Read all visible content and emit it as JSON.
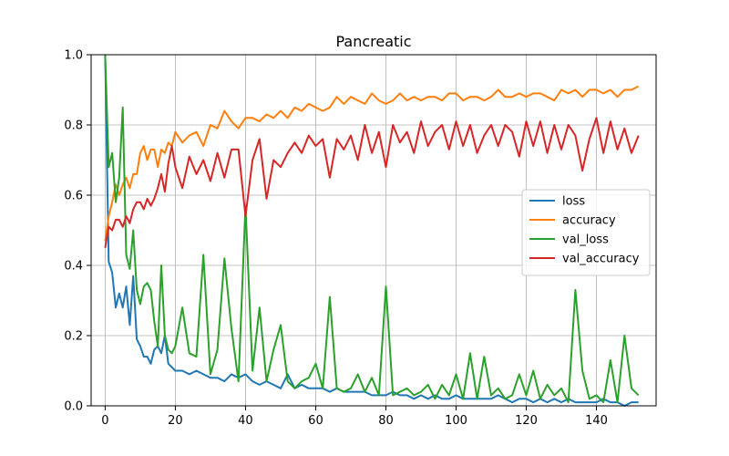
{
  "chart_data": {
    "type": "line",
    "title": "Pancreatic",
    "xlabel": "",
    "ylabel": "",
    "xlim": [
      -4,
      157
    ],
    "ylim": [
      0,
      1.0
    ],
    "xticks": [
      0,
      20,
      40,
      60,
      80,
      100,
      120,
      140
    ],
    "yticks": [
      0.0,
      0.2,
      0.4,
      0.6,
      0.8,
      1.0
    ],
    "grid": true,
    "legend_position": "center-right",
    "series": [
      {
        "name": "loss",
        "color": "#1f77b4",
        "x": [
          0,
          1,
          2,
          3,
          4,
          5,
          6,
          7,
          8,
          9,
          10,
          11,
          12,
          13,
          14,
          15,
          16,
          17,
          18,
          19,
          20,
          22,
          24,
          26,
          28,
          30,
          32,
          34,
          36,
          38,
          40,
          42,
          44,
          46,
          48,
          50,
          52,
          54,
          56,
          58,
          60,
          62,
          64,
          66,
          68,
          70,
          72,
          74,
          76,
          78,
          80,
          82,
          84,
          86,
          88,
          90,
          92,
          94,
          96,
          98,
          100,
          102,
          104,
          106,
          108,
          110,
          112,
          114,
          116,
          118,
          120,
          122,
          124,
          126,
          128,
          130,
          132,
          134,
          136,
          138,
          140,
          142,
          144,
          146,
          148,
          150,
          152
        ],
        "y": [
          1.0,
          0.41,
          0.38,
          0.28,
          0.32,
          0.28,
          0.34,
          0.23,
          0.37,
          0.19,
          0.17,
          0.14,
          0.14,
          0.12,
          0.16,
          0.17,
          0.15,
          0.2,
          0.12,
          0.11,
          0.1,
          0.1,
          0.09,
          0.1,
          0.09,
          0.08,
          0.08,
          0.07,
          0.09,
          0.08,
          0.09,
          0.07,
          0.06,
          0.07,
          0.06,
          0.05,
          0.09,
          0.05,
          0.06,
          0.05,
          0.05,
          0.05,
          0.04,
          0.05,
          0.04,
          0.04,
          0.04,
          0.04,
          0.03,
          0.03,
          0.03,
          0.04,
          0.03,
          0.03,
          0.02,
          0.03,
          0.02,
          0.03,
          0.02,
          0.02,
          0.03,
          0.02,
          0.02,
          0.02,
          0.02,
          0.02,
          0.03,
          0.02,
          0.01,
          0.02,
          0.02,
          0.01,
          0.02,
          0.01,
          0.02,
          0.01,
          0.02,
          0.01,
          0.01,
          0.01,
          0.01,
          0.02,
          0.01,
          0.01,
          0.0,
          0.01,
          0.01
        ]
      },
      {
        "name": "accuracy",
        "color": "#ff7f0e",
        "x": [
          0,
          1,
          2,
          3,
          4,
          5,
          6,
          7,
          8,
          9,
          10,
          11,
          12,
          13,
          14,
          15,
          16,
          17,
          18,
          19,
          20,
          22,
          24,
          26,
          28,
          30,
          32,
          34,
          36,
          38,
          40,
          42,
          44,
          46,
          48,
          50,
          52,
          54,
          56,
          58,
          60,
          62,
          64,
          66,
          68,
          70,
          72,
          74,
          76,
          78,
          80,
          82,
          84,
          86,
          88,
          90,
          92,
          94,
          96,
          98,
          100,
          102,
          104,
          106,
          108,
          110,
          112,
          114,
          116,
          118,
          120,
          122,
          124,
          126,
          128,
          130,
          132,
          134,
          136,
          138,
          140,
          142,
          144,
          146,
          148,
          150,
          152
        ],
        "y": [
          0.47,
          0.54,
          0.58,
          0.63,
          0.6,
          0.63,
          0.65,
          0.62,
          0.66,
          0.66,
          0.72,
          0.74,
          0.7,
          0.73,
          0.73,
          0.68,
          0.73,
          0.72,
          0.75,
          0.74,
          0.78,
          0.75,
          0.77,
          0.78,
          0.74,
          0.8,
          0.79,
          0.84,
          0.81,
          0.79,
          0.82,
          0.82,
          0.81,
          0.83,
          0.82,
          0.84,
          0.82,
          0.85,
          0.84,
          0.86,
          0.85,
          0.84,
          0.85,
          0.88,
          0.86,
          0.88,
          0.87,
          0.86,
          0.89,
          0.87,
          0.86,
          0.87,
          0.89,
          0.87,
          0.88,
          0.87,
          0.88,
          0.88,
          0.87,
          0.89,
          0.89,
          0.87,
          0.88,
          0.88,
          0.87,
          0.88,
          0.9,
          0.88,
          0.88,
          0.89,
          0.88,
          0.89,
          0.89,
          0.88,
          0.87,
          0.9,
          0.89,
          0.9,
          0.88,
          0.9,
          0.9,
          0.89,
          0.9,
          0.88,
          0.9,
          0.9,
          0.91
        ]
      },
      {
        "name": "val_loss",
        "color": "#2ca02c",
        "x": [
          0,
          1,
          2,
          3,
          4,
          5,
          6,
          7,
          8,
          9,
          10,
          11,
          12,
          13,
          14,
          15,
          16,
          17,
          18,
          19,
          20,
          22,
          24,
          26,
          28,
          30,
          32,
          34,
          36,
          38,
          40,
          42,
          44,
          46,
          48,
          50,
          52,
          54,
          56,
          58,
          60,
          62,
          64,
          66,
          68,
          70,
          72,
          74,
          76,
          78,
          80,
          82,
          84,
          86,
          88,
          90,
          92,
          94,
          96,
          98,
          100,
          102,
          104,
          106,
          108,
          110,
          112,
          114,
          116,
          118,
          120,
          122,
          124,
          126,
          128,
          130,
          132,
          134,
          136,
          138,
          140,
          142,
          144,
          146,
          148,
          150,
          152
        ],
        "y": [
          1.0,
          0.68,
          0.72,
          0.58,
          0.65,
          0.85,
          0.43,
          0.39,
          0.5,
          0.33,
          0.29,
          0.34,
          0.35,
          0.33,
          0.24,
          0.17,
          0.4,
          0.2,
          0.16,
          0.15,
          0.17,
          0.28,
          0.15,
          0.14,
          0.43,
          0.09,
          0.16,
          0.42,
          0.22,
          0.07,
          0.57,
          0.1,
          0.28,
          0.07,
          0.16,
          0.23,
          0.07,
          0.05,
          0.07,
          0.08,
          0.12,
          0.05,
          0.31,
          0.05,
          0.04,
          0.05,
          0.09,
          0.04,
          0.08,
          0.03,
          0.34,
          0.03,
          0.04,
          0.05,
          0.03,
          0.04,
          0.06,
          0.02,
          0.06,
          0.03,
          0.09,
          0.02,
          0.15,
          0.02,
          0.14,
          0.03,
          0.05,
          0.02,
          0.03,
          0.09,
          0.03,
          0.1,
          0.02,
          0.06,
          0.03,
          0.05,
          0.01,
          0.33,
          0.1,
          0.02,
          0.03,
          0.01,
          0.13,
          0.01,
          0.2,
          0.05,
          0.03
        ]
      },
      {
        "name": "val_accuracy",
        "color": "#d62728",
        "x": [
          0,
          1,
          2,
          3,
          4,
          5,
          6,
          7,
          8,
          9,
          10,
          11,
          12,
          13,
          14,
          15,
          16,
          17,
          18,
          19,
          20,
          22,
          24,
          26,
          28,
          30,
          32,
          34,
          36,
          38,
          40,
          42,
          44,
          46,
          48,
          50,
          52,
          54,
          56,
          58,
          60,
          62,
          64,
          66,
          68,
          70,
          72,
          74,
          76,
          78,
          80,
          82,
          84,
          86,
          88,
          90,
          92,
          94,
          96,
          98,
          100,
          102,
          104,
          106,
          108,
          110,
          112,
          114,
          116,
          118,
          120,
          122,
          124,
          126,
          128,
          130,
          132,
          134,
          136,
          138,
          140,
          142,
          144,
          146,
          148,
          150,
          152
        ],
        "y": [
          0.45,
          0.51,
          0.5,
          0.53,
          0.53,
          0.51,
          0.54,
          0.52,
          0.56,
          0.58,
          0.58,
          0.56,
          0.59,
          0.57,
          0.59,
          0.62,
          0.66,
          0.61,
          0.69,
          0.74,
          0.68,
          0.62,
          0.71,
          0.66,
          0.7,
          0.64,
          0.72,
          0.65,
          0.73,
          0.73,
          0.54,
          0.7,
          0.76,
          0.59,
          0.7,
          0.68,
          0.72,
          0.75,
          0.72,
          0.77,
          0.74,
          0.76,
          0.65,
          0.76,
          0.73,
          0.77,
          0.7,
          0.8,
          0.72,
          0.78,
          0.68,
          0.8,
          0.75,
          0.78,
          0.72,
          0.81,
          0.74,
          0.78,
          0.8,
          0.73,
          0.81,
          0.74,
          0.8,
          0.72,
          0.77,
          0.8,
          0.74,
          0.8,
          0.78,
          0.71,
          0.81,
          0.74,
          0.81,
          0.72,
          0.8,
          0.73,
          0.8,
          0.77,
          0.67,
          0.76,
          0.82,
          0.72,
          0.81,
          0.73,
          0.79,
          0.72,
          0.77
        ]
      }
    ]
  }
}
